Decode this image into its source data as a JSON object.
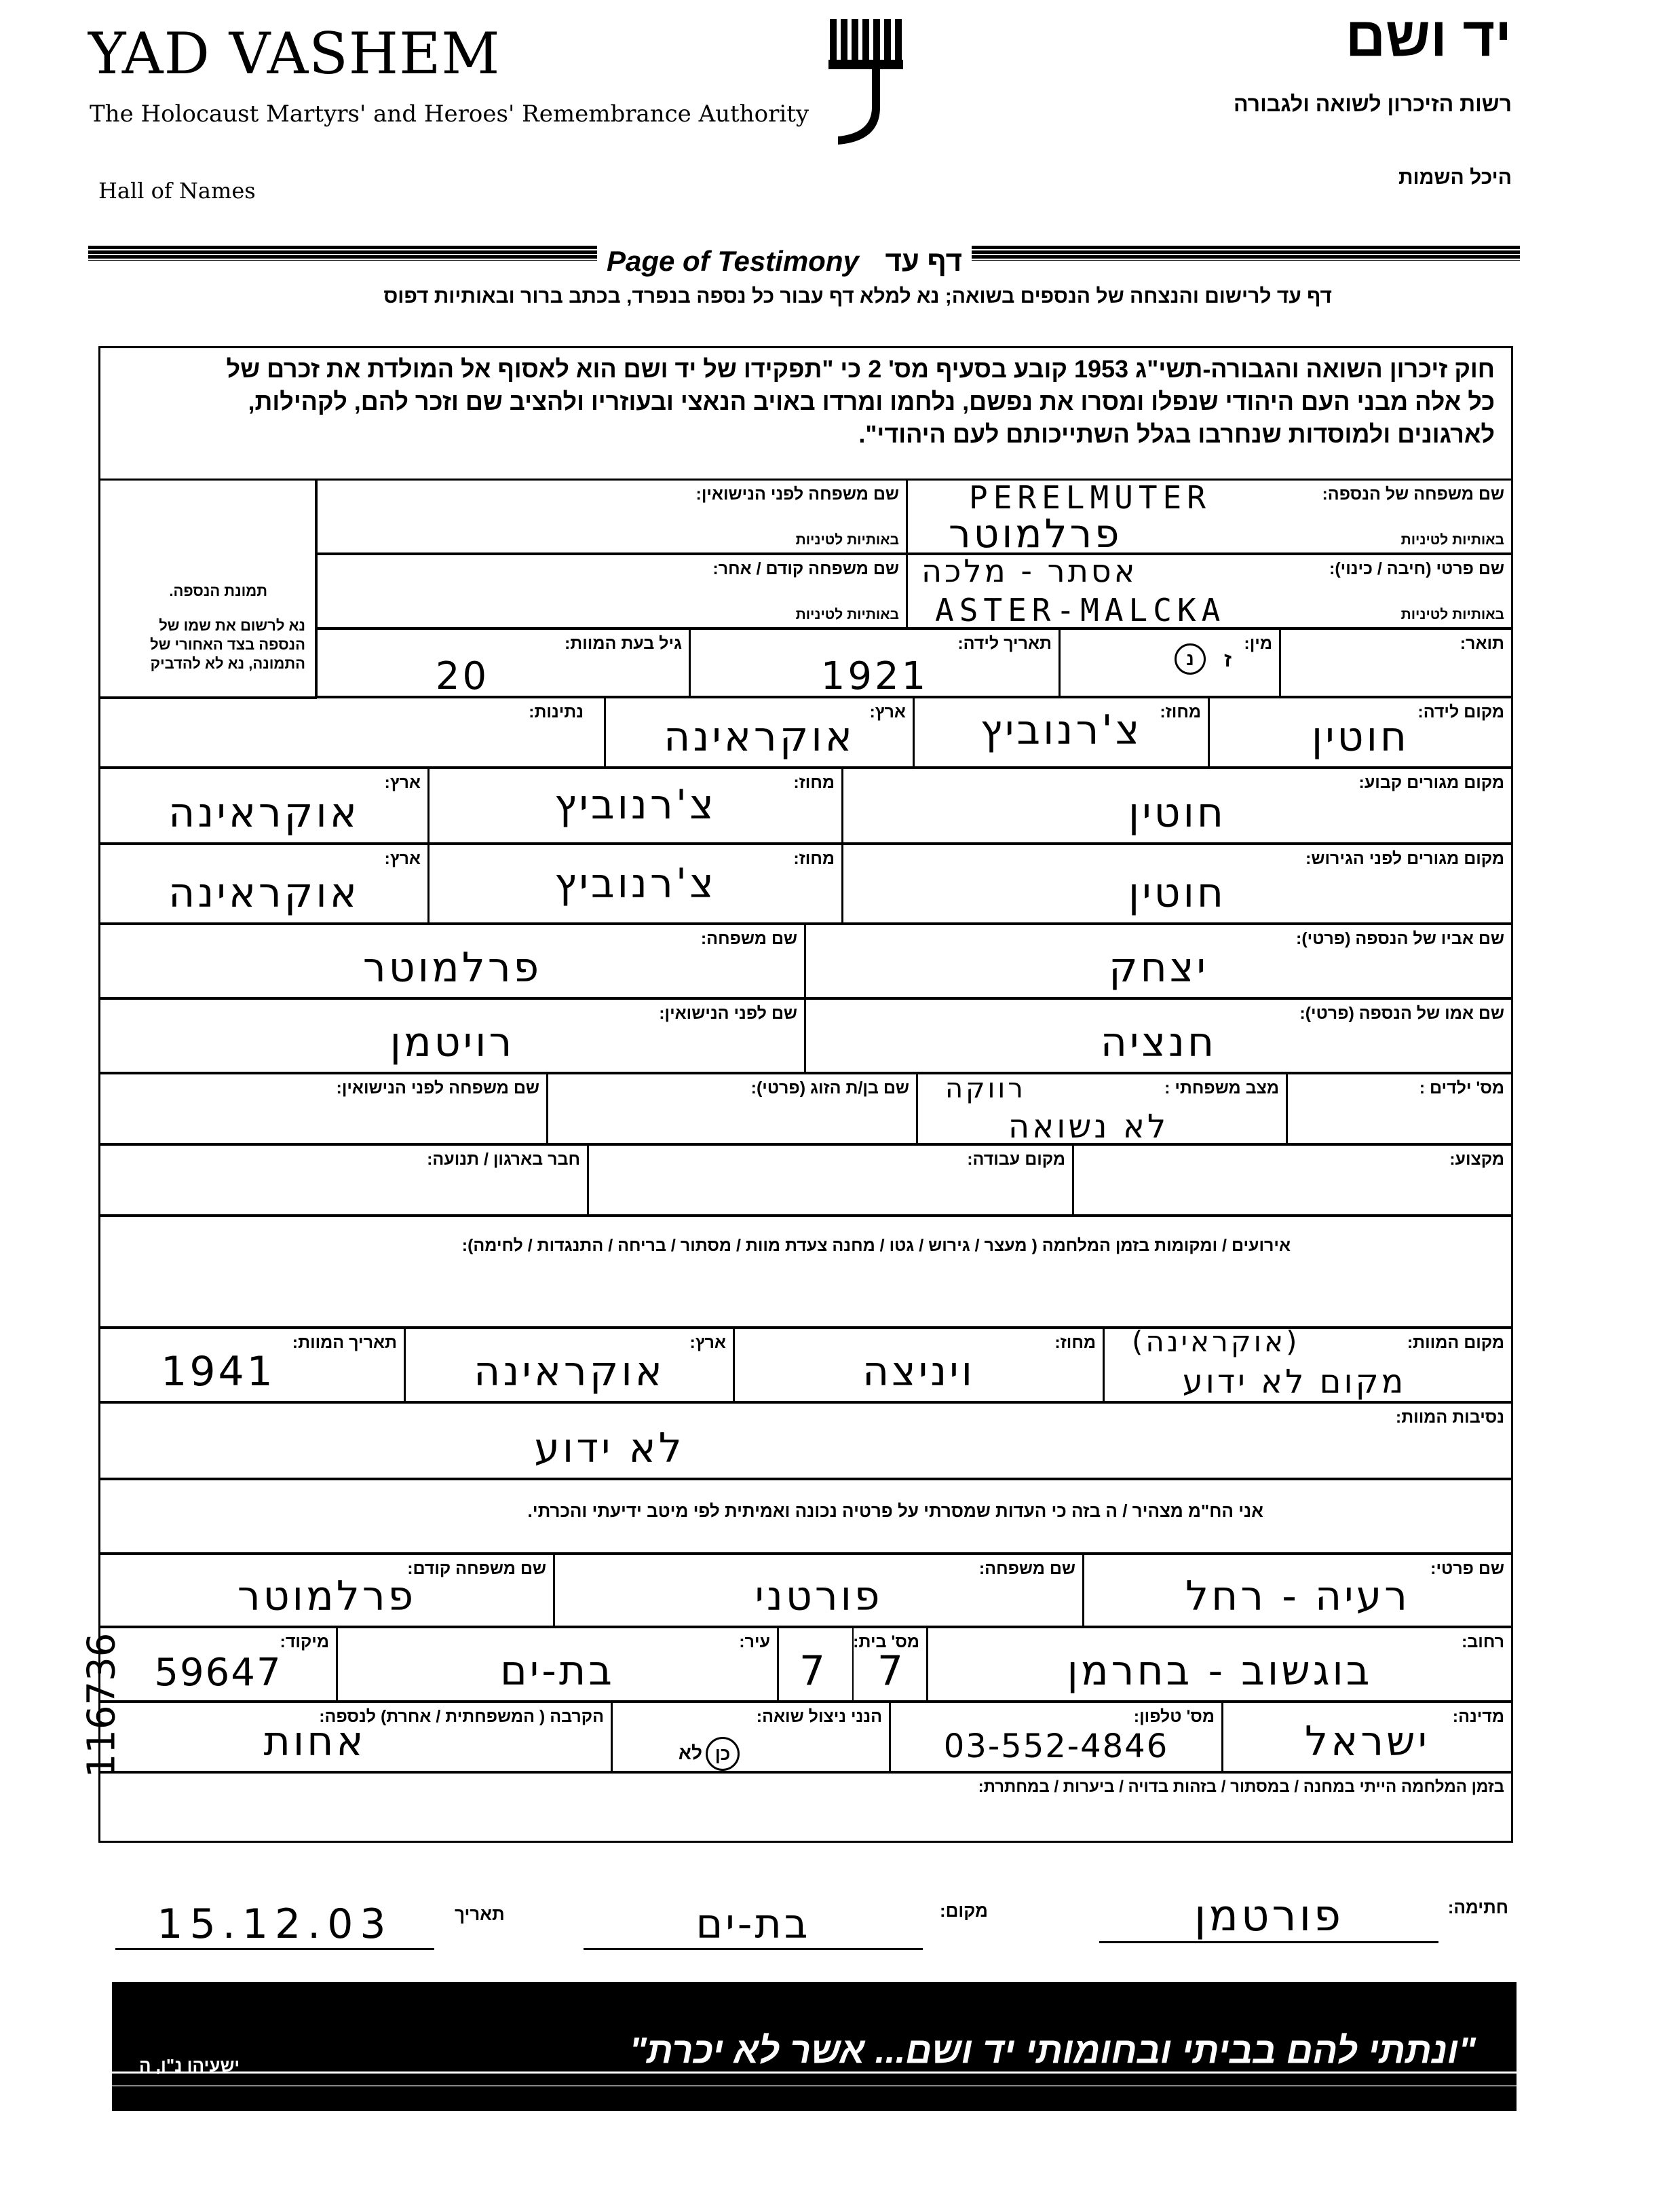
{
  "header": {
    "org_en": "YAD VASHEM",
    "org_en_sub": "The Holocaust Martyrs' and Heroes' Remembrance Authority",
    "dept_en": "Hall of Names",
    "org_he": "יד ושם",
    "org_he_sub": "רשות הזיכרון לשואה ולגבורה",
    "dept_he": "היכל השמות",
    "form_title_en": "Page of Testimony",
    "form_title_he": "דף עד",
    "instructions": "דף עד לרישום והנצחה של הנספים בשואה; נא למלא דף עבור כל נספה בנפרד, בכתב ברור ובאותיות דפוס"
  },
  "law_text": [
    "חוק זיכרון השואה והגבורה-תשי\"ג 1953 קובע בסעיף מס' 2 כי \"תפקידו של יד ושם הוא לאסוף אל המולדת את זכרם של",
    "כל אלה מבני העם היהודי שנפלו ומסרו את נפשם, נלחמו ומרדו באויב הנאצי ובעוזריו ולהציב שם וזכר להם, לקהילות,",
    "לארגונים ולמוסדות שנחרבו בגלל השתייכותם לעם היהודי\"."
  ],
  "photo": {
    "label": "תמונת הנספה.",
    "note": "נא לרשום את שמו של הנספה בצד האחורי של התמונה, נא לא להדביק"
  },
  "victim": {
    "surname": {
      "label": "שם משפחה של הנספה:",
      "latin_label": "באותיות לטיניות",
      "latin": "PERELMUTER",
      "value": "פרלמוטר"
    },
    "maiden": {
      "label": "שם משפחה לפני הנישואין:",
      "latin_label": "באותיות לטיניות",
      "value": ""
    },
    "first": {
      "label": "שם פרטי (חיבה / כינוי):",
      "latin_label": "באותיות לטיניות",
      "value": "אסתר - מלכה",
      "latin": "ASTER-MALCKA"
    },
    "prev_surname": {
      "label": "שם משפחה קודם / אחר:",
      "latin_label": "באותיות לטיניות",
      "value": ""
    },
    "title": {
      "label": "תואר:",
      "value": ""
    },
    "gender": {
      "label": "מין:",
      "value": "ז",
      "selected": "נ"
    },
    "dob": {
      "label": "תאריך לידה:",
      "value": "1921"
    },
    "age": {
      "label": "גיל בעת המוות:",
      "value": "20"
    },
    "birth_place": {
      "label": "מקום לידה:",
      "value": "חוטין"
    },
    "birth_region": {
      "label": "מחוז:",
      "value": "צ'רנוביץ"
    },
    "birth_country": {
      "label": "ארץ:",
      "value": "אוקראינה"
    },
    "nationality": {
      "label": "נתינות:",
      "value": ""
    },
    "residence": {
      "label": "מקום מגורים קבוע:",
      "value": "חוטין",
      "region_label": "מחוז:",
      "region": "צ'רנוביץ",
      "country_label": "ארץ:",
      "country": "אוקראינה"
    },
    "residence_before": {
      "label": "מקום מגורים לפני הגירוש:",
      "value": "חוטין",
      "region_label": "מחוז:",
      "region": "צ'רנוביץ",
      "country_label": "ארץ:",
      "country": "אוקראינה"
    },
    "father": {
      "label": "שם אביו של הנספה (פרטי):",
      "value": "יצחק",
      "surname_label": "שם משפחה:",
      "surname": "פרלמוטר"
    },
    "mother": {
      "label": "שם אמו של הנספה (פרטי):",
      "value": "חנציה",
      "maiden_label": "שם לפני הנישואין:",
      "maiden": "רויטמן"
    },
    "children": {
      "label": "מס' ילדים :",
      "value": ""
    },
    "marital": {
      "label": "מצב משפחתי :",
      "value": "רווקה",
      "value2": "לא נשואה"
    },
    "spouse": {
      "label": "שם בן/ת הזוג (פרטי):",
      "value": ""
    },
    "spouse_maiden": {
      "label": "שם משפחה לפני הנישואין:",
      "value": ""
    },
    "profession": {
      "label": "מקצוע:",
      "value": ""
    },
    "workplace": {
      "label": "מקום עבודה:",
      "value": ""
    },
    "member": {
      "label": "חבר בארגון / תנועה:",
      "value": ""
    },
    "events": {
      "label": "אירועים / ומקומות בזמן המלחמה ( מעצר / גירוש / גטו / מחנה  צעדת מוות / מסתור / בריחה / התנגדות / לחימה):",
      "value": ""
    },
    "death_place": {
      "label": "מקום המוות:",
      "value": "מקום לא ידוע",
      "value_extra": "(אוקראינה)"
    },
    "death_region": {
      "label": "מחוז:",
      "value": "ויניצה"
    },
    "death_country": {
      "label": "ארץ:",
      "value": "אוקראינה"
    },
    "death_date": {
      "label": "תאריך המוות:",
      "value": "1941"
    },
    "death_circumstances": {
      "label": "נסיבות המוות:",
      "value": "לא ידוע"
    }
  },
  "declaration": "אני הח\"מ מצהיר / ה בזה כי העדות שמסרתי על פרטיה נכונה ואמיתית לפי מיטב ידיעתי והכרתי.",
  "submitter": {
    "first": {
      "label": "שם פרטי:",
      "value": "רעיה - רחל"
    },
    "surname": {
      "label": "שם משפחה:",
      "value": "פורטני"
    },
    "prev_surname": {
      "label": "שם משפחה קודם:",
      "value": "פרלמוטר"
    },
    "street": {
      "label": "רחוב:",
      "value": "בוגשוב - בחרמן"
    },
    "house": {
      "label": "מס' בית:",
      "value": "7",
      "value2": "7"
    },
    "city": {
      "label": "עיר:",
      "value": "בת-ים"
    },
    "zip": {
      "label": "מיקוד:",
      "value": "59647"
    },
    "country": {
      "label": "מדינה:",
      "value": "ישראל"
    },
    "phone": {
      "label": "מס' טלפון:",
      "value": "03-552-4846"
    },
    "survivor": {
      "label": "הנני ניצול שואה:",
      "yes": "כן",
      "no": "לא",
      "selected": "כן"
    },
    "relation": {
      "label": "הקרבה ( המשפחתית / אחרת) לנספה:",
      "value": "אחות"
    },
    "wartime": {
      "label": "בזמן המלחמה הייתי במחנה / במסתור / בזהות בדויה / ביערות / במחתרת:",
      "underlined": "במחנה"
    }
  },
  "signature": {
    "sig_label": "חתימה:",
    "sig_value": "פורטמן",
    "place_label": "מקום:",
    "place_value": "בת-ים",
    "date_label": "תאריך",
    "date_value": "15.12.03"
  },
  "banner": {
    "quote": "\"ונתתי להם בביתי ובחומותי יד ושם... אשר לא יכרת\"",
    "source": "ישעיהו נ\"ו, ה"
  },
  "side_number": "116736"
}
